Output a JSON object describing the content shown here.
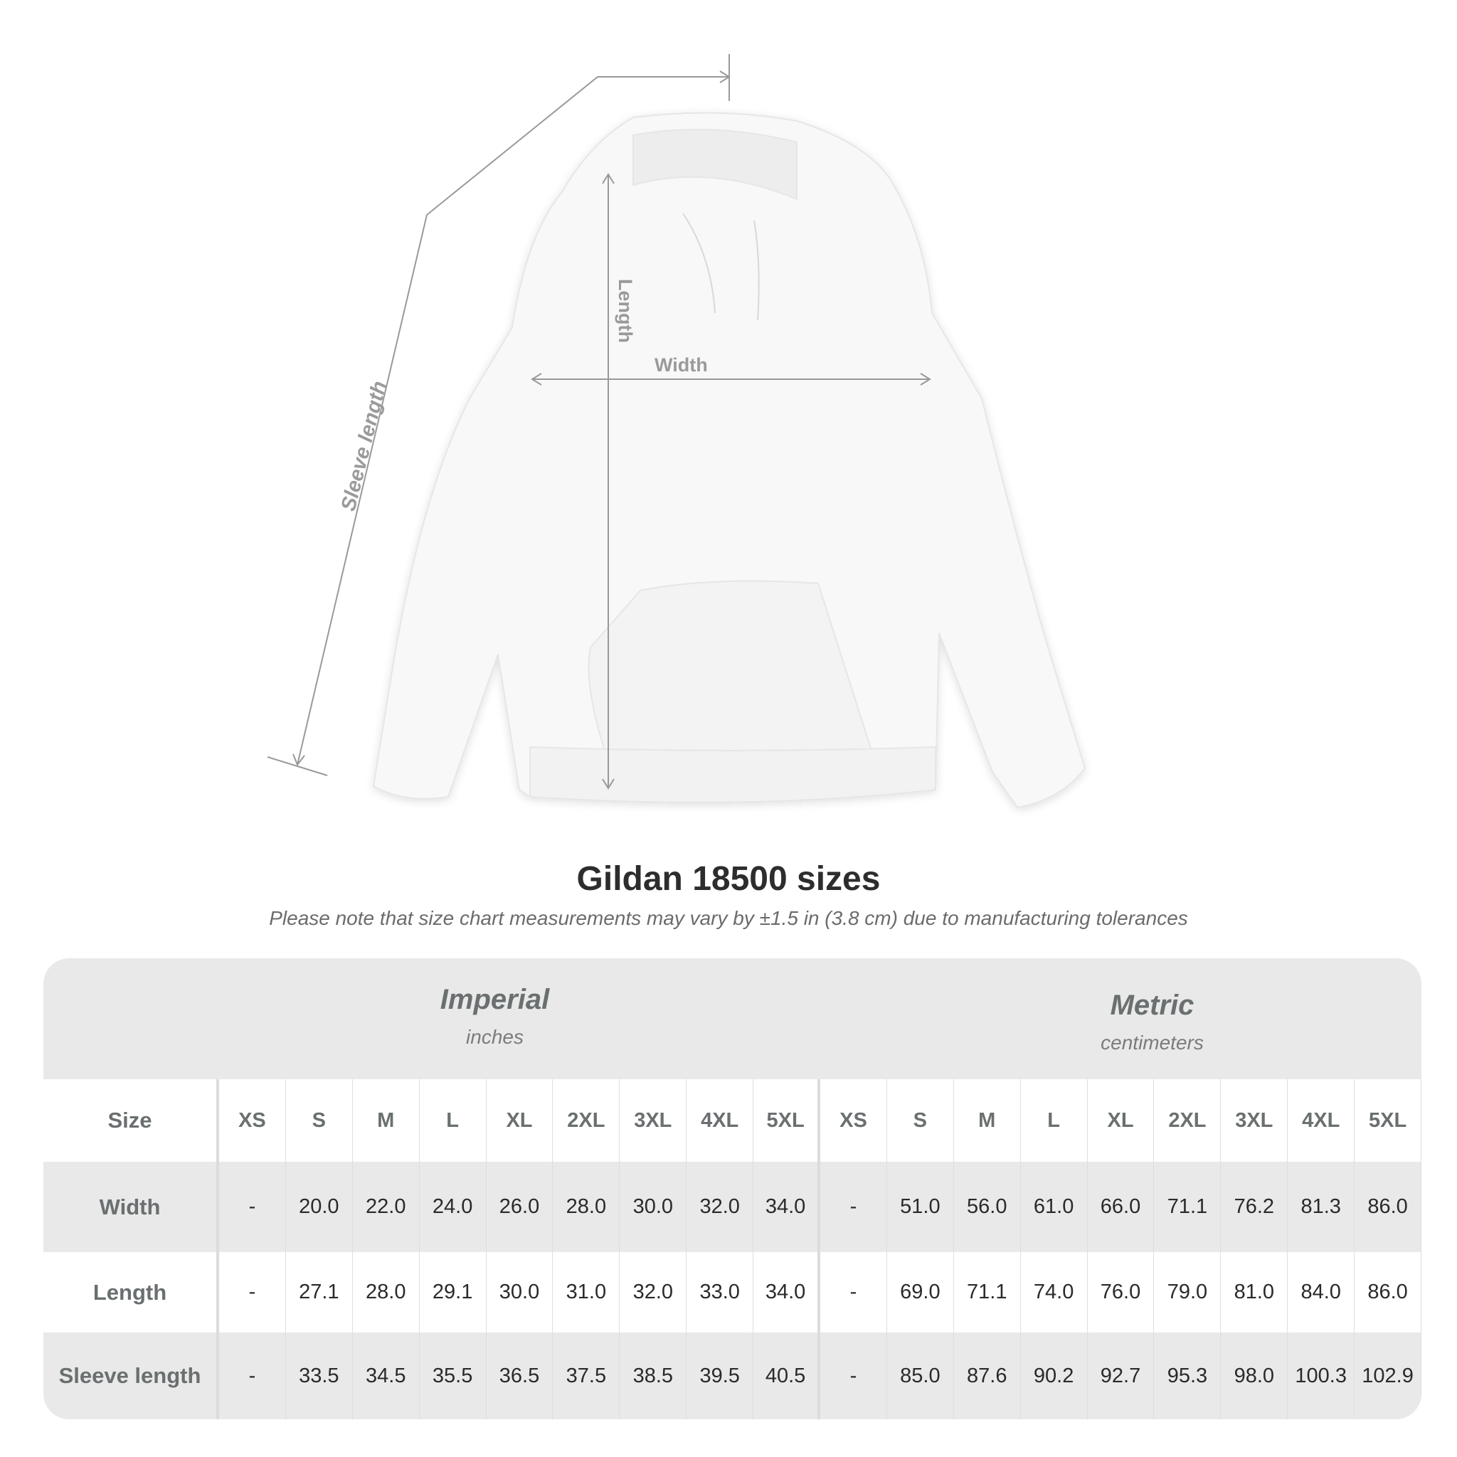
{
  "diagram": {
    "labels": {
      "sleeve": "Sleeve length",
      "length": "Length",
      "width": "Width"
    }
  },
  "title": "Gildan 18500 sizes",
  "note": "Please note that size chart measurements may vary by ±1.5 in (3.8 cm) due to manufacturing tolerances",
  "table": {
    "imperial": {
      "name": "Imperial",
      "unit": "inches"
    },
    "metric": {
      "name": "Metric",
      "unit": "centimeters"
    },
    "size_label": "Size",
    "sizes": [
      "XS",
      "S",
      "M",
      "L",
      "XL",
      "2XL",
      "3XL",
      "4XL",
      "5XL"
    ],
    "rows": [
      {
        "label": "Width",
        "imperial": [
          "-",
          "20.0",
          "22.0",
          "24.0",
          "26.0",
          "28.0",
          "30.0",
          "32.0",
          "34.0"
        ],
        "metric": [
          "-",
          "51.0",
          "56.0",
          "61.0",
          "66.0",
          "71.1",
          "76.2",
          "81.3",
          "86.0"
        ]
      },
      {
        "label": "Length",
        "imperial": [
          "-",
          "27.1",
          "28.0",
          "29.1",
          "30.0",
          "31.0",
          "32.0",
          "33.0",
          "34.0"
        ],
        "metric": [
          "-",
          "69.0",
          "71.1",
          "74.0",
          "76.0",
          "79.0",
          "81.0",
          "84.0",
          "86.0"
        ]
      },
      {
        "label": "Sleeve length",
        "imperial": [
          "-",
          "33.5",
          "34.5",
          "35.5",
          "36.5",
          "37.5",
          "38.5",
          "39.5",
          "40.5"
        ],
        "metric": [
          "-",
          "85.0",
          "87.6",
          "90.2",
          "92.7",
          "95.3",
          "98.0",
          "100.3",
          "102.9"
        ]
      }
    ]
  }
}
